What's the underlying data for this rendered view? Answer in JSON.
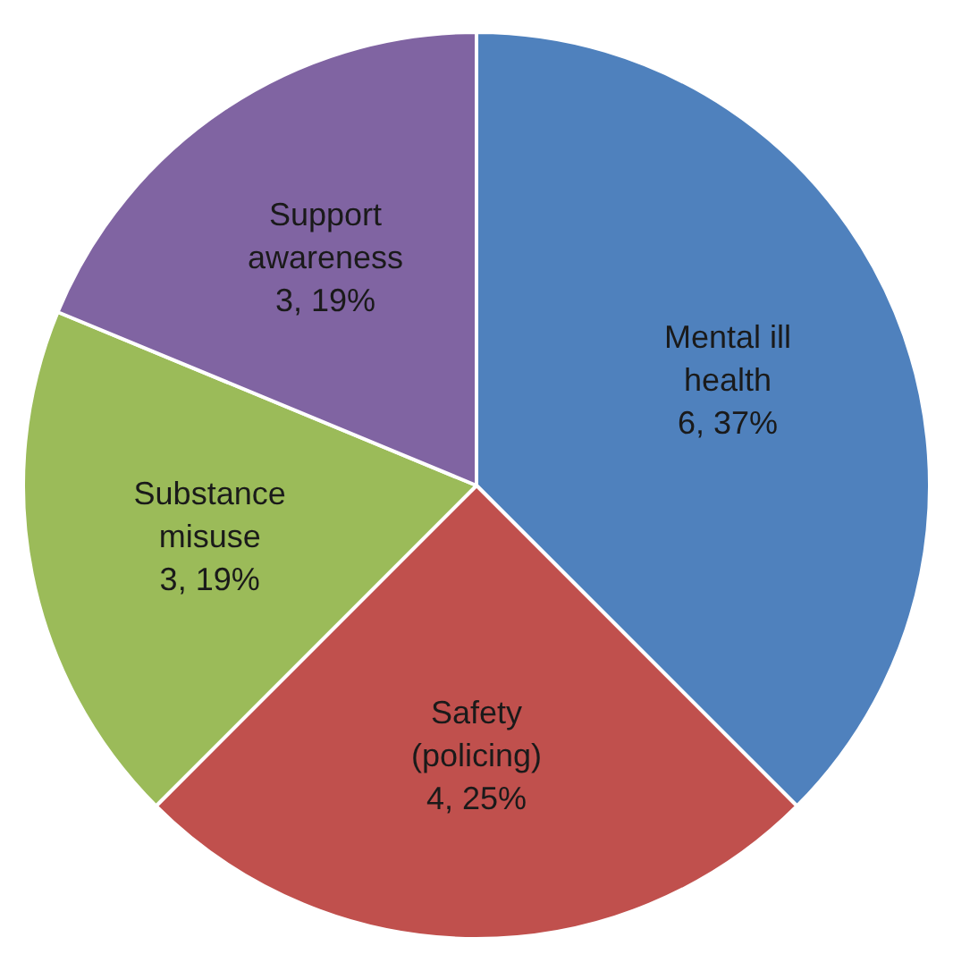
{
  "chart_data": {
    "type": "pie",
    "categories": [
      "Mental ill health",
      "Safety (policing)",
      "Substance misuse",
      "Support awareness"
    ],
    "values": [
      6,
      4,
      3,
      3
    ],
    "value_labels": [
      "6, 37%",
      "4, 25%",
      "3, 19%",
      "3, 19%"
    ],
    "colors": [
      "#4f81bd",
      "#c0504d",
      "#9bbb59",
      "#8064a2"
    ]
  }
}
